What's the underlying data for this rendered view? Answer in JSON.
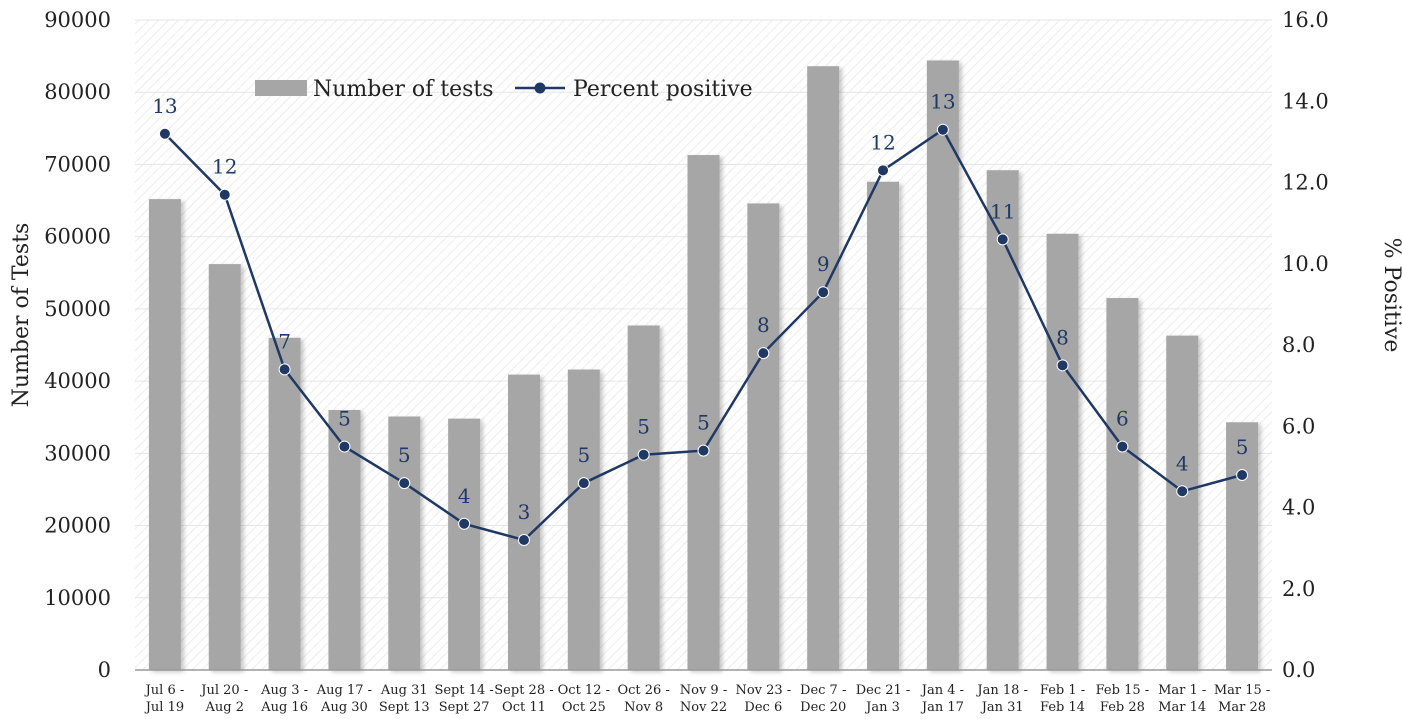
{
  "chart_data": {
    "type": "bar",
    "categories": [
      "Jul 6 - Jul 19",
      "Jul 20 - Aug 2",
      "Aug 3 - Aug 16",
      "Aug 17 - Aug 30",
      "Aug 31 - Sept 13",
      "Sept 14 - Sept 27",
      "Sept 28 - Oct 11",
      "Oct 12 - Oct 25",
      "Oct 26 - Nov 8",
      "Nov 9 - Nov 22",
      "Nov 23 - Dec 6",
      "Dec 7 - Dec 20",
      "Dec 21 - Jan 3",
      "Jan 4 - Jan 17",
      "Jan 18 - Jan 31",
      "Feb 1 - Feb 14",
      "Feb 15 - Feb 28",
      "Mar 1 - Mar 14",
      "Mar 15 - Mar 28"
    ],
    "category_lines": [
      [
        "Jul 6 -",
        "Jul 19"
      ],
      [
        "Jul 20 -",
        "Aug 2"
      ],
      [
        "Aug 3 -",
        "Aug 16"
      ],
      [
        "Aug 17 -",
        "Aug 30"
      ],
      [
        "Aug 31",
        "Sept 13"
      ],
      [
        "Sept 14 -",
        "Sept 27"
      ],
      [
        "Sept 28 -",
        "Oct 11"
      ],
      [
        "Oct 12 -",
        "Oct 25"
      ],
      [
        "Oct 26 -",
        "Nov 8"
      ],
      [
        "Nov 9 -",
        "Nov 22"
      ],
      [
        "Nov 23 -",
        "Dec 6"
      ],
      [
        "Dec 7 -",
        "Dec 20"
      ],
      [
        "Dec 21 -",
        "Jan 3"
      ],
      [
        "Jan 4 -",
        "Jan 17"
      ],
      [
        "Jan 18 -",
        "Jan 31"
      ],
      [
        "Feb 1 -",
        "Feb 14"
      ],
      [
        "Feb 15 -",
        "Feb 28"
      ],
      [
        "Mar 1 -",
        "Mar 14"
      ],
      [
        "Mar 15 -",
        "Mar 28"
      ]
    ],
    "series": [
      {
        "name": "Number of tests",
        "type": "bar",
        "axis": "left",
        "color": "#a6a6a6",
        "values": [
          65200,
          56200,
          46000,
          36000,
          35100,
          34800,
          40900,
          41600,
          47700,
          71300,
          64600,
          83600,
          67600,
          84400,
          69200,
          60400,
          51500,
          46300,
          34300
        ]
      },
      {
        "name": "Percent positive",
        "type": "line",
        "axis": "right",
        "color": "#1f3864",
        "values": [
          13.2,
          11.7,
          7.4,
          5.5,
          4.6,
          3.6,
          3.2,
          4.6,
          5.3,
          5.4,
          7.8,
          9.3,
          12.3,
          13.3,
          10.6,
          7.5,
          5.5,
          4.4,
          4.8
        ],
        "labels": [
          "13",
          "12",
          "7",
          "5",
          "5",
          "4",
          "3",
          "5",
          "5",
          "5",
          "8",
          "9",
          "12",
          "13",
          "11",
          "8",
          "6",
          "4",
          "5"
        ]
      }
    ],
    "ylabel": "Number of Tests",
    "y2label": "% Positive",
    "ylim": [
      0,
      90000
    ],
    "y2lim": [
      0,
      16
    ],
    "yticks": [
      "0",
      "10000",
      "20000",
      "30000",
      "40000",
      "50000",
      "60000",
      "70000",
      "80000",
      "90000"
    ],
    "y2ticks": [
      "0.0",
      "2.0",
      "4.0",
      "6.0",
      "8.0",
      "10.0",
      "12.0",
      "14.0",
      "16.0"
    ],
    "grid": true,
    "legend_position": "top-left"
  }
}
